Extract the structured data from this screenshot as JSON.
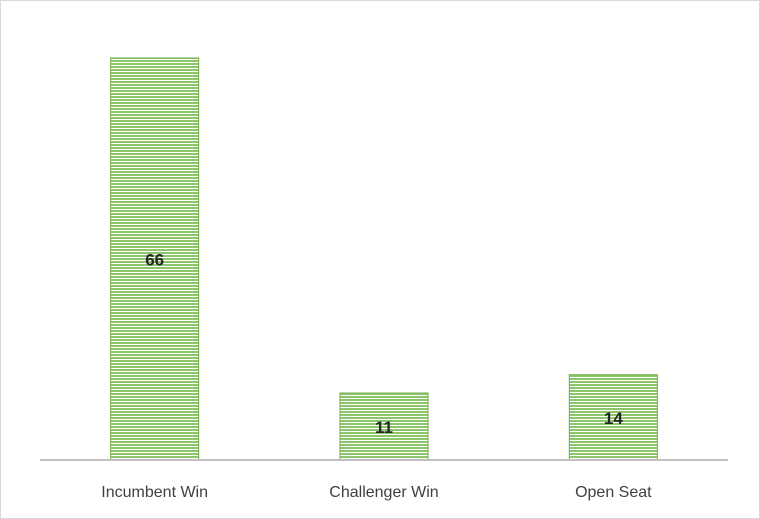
{
  "chart_data": {
    "type": "bar",
    "categories": [
      "Incumbent Win",
      "Challenger Win",
      "Open Seat"
    ],
    "values": [
      66,
      11,
      14
    ],
    "color": "#70ad47"
  }
}
